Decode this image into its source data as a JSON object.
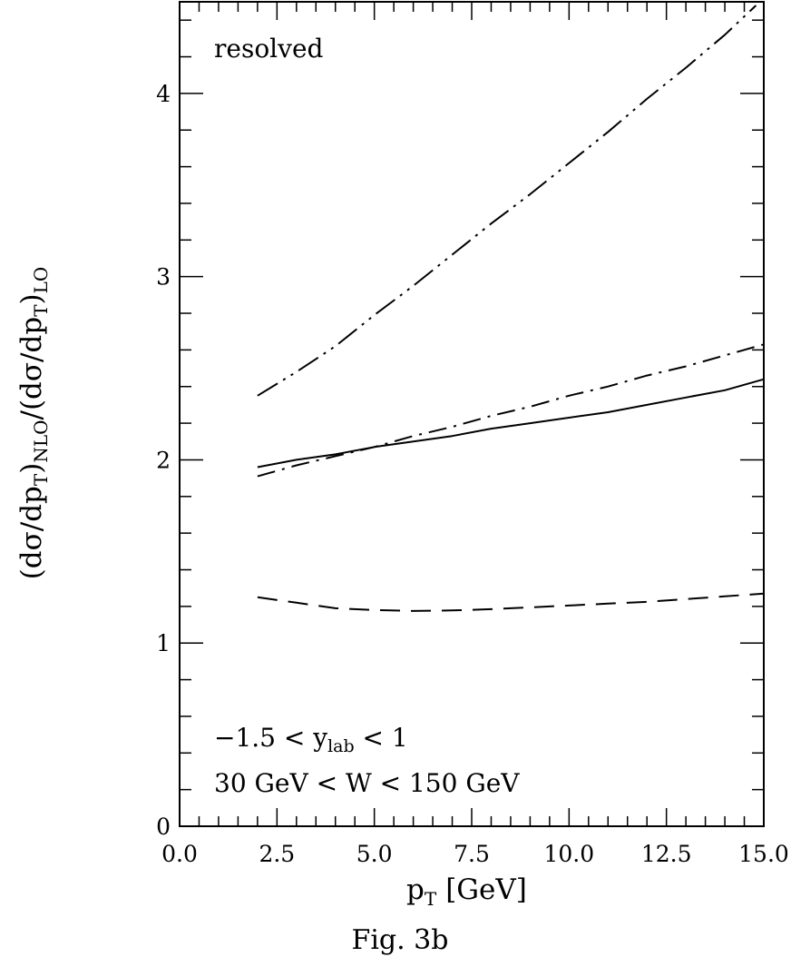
{
  "chart_data": {
    "type": "line",
    "xlabel_main": "p",
    "xlabel_sub": "T",
    "xlabel_unit": "[GeV]",
    "ylabel": "(dσ/dpT)NLO/(dσ/dpT)LO",
    "ylabel_parts": {
      "num_open": "(dσ/dp",
      "num_sub": "T",
      "num_close": ")",
      "num_tag": "NLO",
      "den_open": "/(dσ/dp",
      "den_sub": "T",
      "den_close": ")",
      "den_tag": "LO"
    },
    "xlim": [
      0,
      15
    ],
    "ylim": [
      0,
      4.5
    ],
    "xticks": [
      "0.0",
      "2.5",
      "5.0",
      "7.5",
      "10.0",
      "12.5",
      "15.0"
    ],
    "yticks": [
      "0",
      "1",
      "2",
      "3",
      "4"
    ],
    "grid": false,
    "annotations": {
      "label_top": "resolved",
      "rap_a": "−1.5 < y",
      "rap_sub": "lab",
      "rap_b": " < 1",
      "w_range": "30 GeV < W < 150 GeV"
    },
    "caption": "Fig. 3b",
    "series": [
      {
        "style": "dash-dot-dot",
        "x": [
          2,
          3,
          4,
          5,
          6,
          7,
          8,
          9,
          10,
          11,
          12,
          13,
          14,
          14.8
        ],
        "y": [
          2.35,
          2.48,
          2.62,
          2.79,
          2.95,
          3.12,
          3.29,
          3.45,
          3.62,
          3.79,
          3.97,
          4.14,
          4.32,
          4.48
        ]
      },
      {
        "style": "dash-dot",
        "x": [
          2,
          3,
          4,
          5,
          6,
          7,
          8,
          9,
          10,
          11,
          12,
          13,
          14,
          15
        ],
        "y": [
          1.91,
          1.97,
          2.02,
          2.07,
          2.13,
          2.18,
          2.24,
          2.29,
          2.35,
          2.4,
          2.46,
          2.51,
          2.57,
          2.63
        ]
      },
      {
        "style": "solid",
        "x": [
          2,
          3,
          4,
          5,
          6,
          7,
          8,
          9,
          10,
          11,
          12,
          13,
          14,
          15
        ],
        "y": [
          1.96,
          2.0,
          2.03,
          2.07,
          2.1,
          2.13,
          2.17,
          2.2,
          2.23,
          2.26,
          2.3,
          2.34,
          2.38,
          2.44
        ]
      },
      {
        "style": "dashed",
        "x": [
          2,
          3,
          4,
          5,
          6,
          7,
          8,
          9,
          10,
          11,
          12,
          13,
          14,
          15
        ],
        "y": [
          1.25,
          1.22,
          1.19,
          1.18,
          1.175,
          1.178,
          1.185,
          1.195,
          1.205,
          1.215,
          1.225,
          1.24,
          1.255,
          1.27
        ]
      }
    ]
  }
}
